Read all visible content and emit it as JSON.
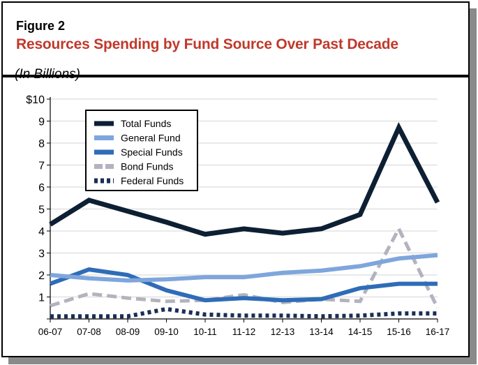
{
  "figure_label": "Figure 2",
  "title": "Resources Spending by Fund Source Over Past Decade",
  "unit_note": "(In Billions)",
  "chart_data": {
    "type": "line",
    "title": "Resources Spending by Fund Source Over Past Decade",
    "ylabel": "(In Billions)",
    "ylim": [
      0,
      10
    ],
    "yticks": [
      "",
      "1",
      "2",
      "3",
      "4",
      "5",
      "6",
      "7",
      "8",
      "9",
      "$10"
    ],
    "categories": [
      "06-07",
      "07-08",
      "08-09",
      "09-10",
      "10-11",
      "11-12",
      "12-13",
      "13-14",
      "14-15",
      "15-16",
      "16-17"
    ],
    "grid": true,
    "legend": "top-left",
    "series": [
      {
        "name": "Total Funds",
        "color": "#0d1f33",
        "style": "solid",
        "values": [
          4.3,
          5.4,
          4.9,
          4.4,
          3.85,
          4.1,
          3.9,
          4.1,
          4.75,
          8.7,
          5.3
        ]
      },
      {
        "name": "General Fund",
        "color": "#7ea6dc",
        "style": "solid",
        "values": [
          2.0,
          1.85,
          1.75,
          1.8,
          1.9,
          1.9,
          2.1,
          2.2,
          2.4,
          2.75,
          2.9
        ]
      },
      {
        "name": "Special Funds",
        "color": "#2f6cb8",
        "style": "solid",
        "values": [
          1.6,
          2.25,
          2.0,
          1.3,
          0.85,
          0.95,
          0.85,
          0.9,
          1.4,
          1.6,
          1.6
        ]
      },
      {
        "name": "Bond Funds",
        "color": "#b3b3bf",
        "style": "dashed",
        "values": [
          0.6,
          1.15,
          0.95,
          0.8,
          0.85,
          1.1,
          0.75,
          0.9,
          0.8,
          4.1,
          0.5
        ]
      },
      {
        "name": "Federal Funds",
        "color": "#1a2e55",
        "style": "dotted",
        "values": [
          0.12,
          0.12,
          0.12,
          0.45,
          0.2,
          0.15,
          0.15,
          0.12,
          0.15,
          0.25,
          0.25
        ]
      }
    ]
  }
}
